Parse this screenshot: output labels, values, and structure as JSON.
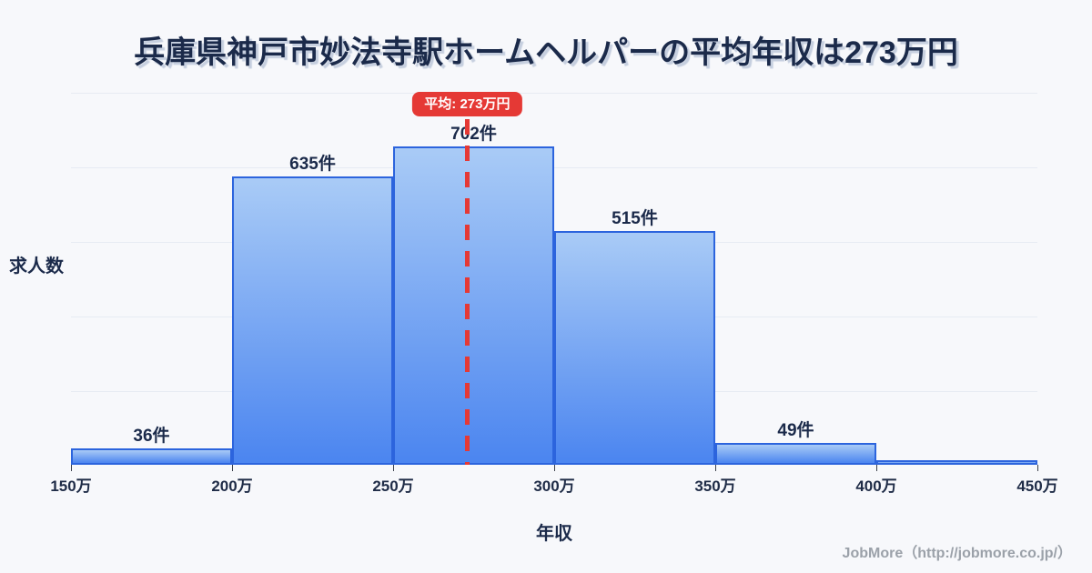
{
  "title": "兵庫県神戸市妙法寺駅ホームヘルパーの平均年収は273万円",
  "chart_data": {
    "type": "bar",
    "subtype": "histogram",
    "title": "兵庫県神戸市妙法寺駅ホームヘルパーの平均年収は273万円",
    "xlabel": "年収",
    "ylabel": "求人数",
    "x_tick_labels": [
      "150万",
      "200万",
      "250万",
      "300万",
      "350万",
      "400万",
      "450万"
    ],
    "bins": [
      "150万-200万",
      "200万-250万",
      "250万-300万",
      "300万-350万",
      "350万-400万",
      "400万-450万"
    ],
    "values": [
      36,
      635,
      702,
      515,
      49,
      10
    ],
    "bar_labels": [
      "36件",
      "635件",
      "702件",
      "515件",
      "49件",
      ""
    ],
    "x_range": [
      150,
      450
    ],
    "grid": true,
    "legend": false,
    "average_line": {
      "value": 273,
      "label": "平均: 273万円",
      "style": "dashed"
    },
    "colors": {
      "bar_fill_top": "#a9cbf6",
      "bar_fill_bottom": "#4b85f0",
      "bar_border": "#2c64dd",
      "average": "#e53935",
      "text": "#1b2a4a",
      "gridline": "#e7ebf3",
      "background": "#f7f8fb"
    }
  },
  "footer": {
    "credit": "JobMore（http://jobmore.co.jp/）"
  }
}
